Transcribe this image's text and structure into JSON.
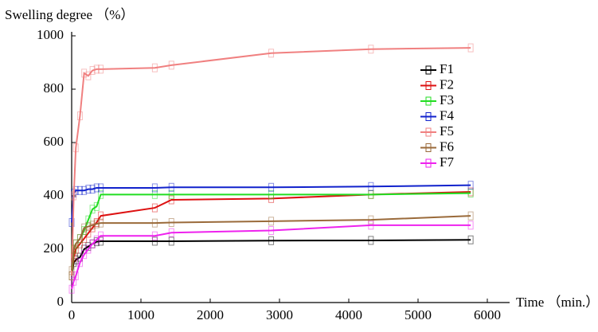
{
  "chart_data": {
    "type": "line",
    "y_label": "Swelling degree （%）",
    "x_label": "Time （min.）",
    "x": [
      0,
      30,
      60,
      120,
      180,
      240,
      300,
      360,
      420,
      1200,
      1440,
      2880,
      4320,
      5760
    ],
    "series": [
      {
        "name": "F1",
        "color": "#000000",
        "values": [
          100,
          150,
          160,
          170,
          200,
          210,
          220,
          228,
          230,
          230,
          230,
          232,
          233,
          235
        ]
      },
      {
        "name": "F2",
        "color": "#dd1111",
        "values": [
          100,
          170,
          200,
          220,
          240,
          260,
          280,
          300,
          325,
          355,
          385,
          390,
          405,
          415
        ]
      },
      {
        "name": "F3",
        "color": "#22dd22",
        "values": [
          100,
          200,
          220,
          240,
          270,
          310,
          350,
          360,
          405,
          405,
          405,
          405,
          405,
          410
        ]
      },
      {
        "name": "F4",
        "color": "#1122cc",
        "values": [
          300,
          410,
          420,
          420,
          420,
          425,
          425,
          430,
          430,
          430,
          432,
          432,
          435,
          440
        ]
      },
      {
        "name": "F5",
        "color": "#f08080",
        "values": [
          100,
          400,
          580,
          700,
          860,
          850,
          870,
          875,
          875,
          880,
          890,
          935,
          950,
          955
        ]
      },
      {
        "name": "F6",
        "color": "#9a6a3a",
        "values": [
          120,
          200,
          220,
          240,
          280,
          285,
          290,
          295,
          298,
          298,
          300,
          305,
          310,
          325
        ]
      },
      {
        "name": "F7",
        "color": "#ee22ee",
        "values": [
          50,
          80,
          100,
          150,
          180,
          200,
          220,
          235,
          250,
          250,
          262,
          270,
          290,
          290
        ]
      }
    ],
    "xlim": [
      0,
      6000
    ],
    "xticks": [
      0,
      1000,
      2000,
      3000,
      4000,
      5000,
      6000
    ],
    "ylim": [
      0,
      1000
    ],
    "yticks": [
      0,
      200,
      400,
      600,
      800,
      1000
    ],
    "grid": false,
    "legend": "upper right"
  }
}
